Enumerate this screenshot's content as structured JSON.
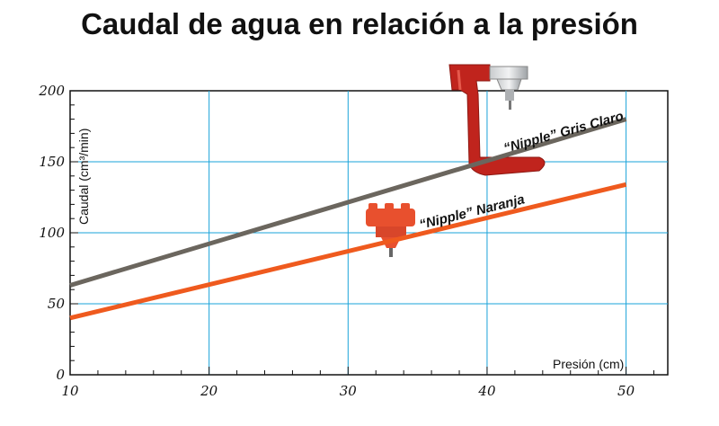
{
  "chart_data": {
    "type": "line",
    "title": "Caudal de agua en relación a la presión",
    "xlabel": "Presión (cm)",
    "ylabel": "Caudal (cm³/min)",
    "xlim": [
      10,
      53
    ],
    "ylim": [
      0,
      200
    ],
    "x_ticks": [
      10,
      20,
      30,
      40,
      50
    ],
    "y_ticks": [
      0,
      50,
      100,
      150,
      200
    ],
    "grid": true,
    "series": [
      {
        "name": "“Nipple” Gris Claro",
        "color": "#6b665e",
        "points": [
          [
            10,
            63
          ],
          [
            50,
            180
          ]
        ]
      },
      {
        "name": "“Nipple” Naranja",
        "color": "#ef5a1e",
        "points": [
          [
            10,
            40
          ],
          [
            50,
            134
          ]
        ]
      }
    ]
  }
}
